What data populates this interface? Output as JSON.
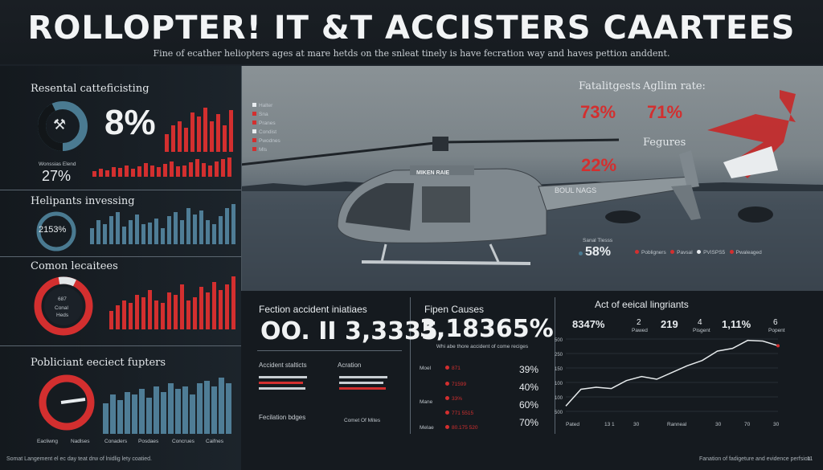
{
  "header": {
    "title": "ROLLOPTER! IT &T ACCISTERS CAARTEES",
    "subtitle": "Fine of ecather heliopters ages at mare hetds on the snleat tinely is have fecration way and haves pettion anddent."
  },
  "left": {
    "s1": {
      "title": "Resental catteficisting",
      "big": "8%",
      "label": "Wonssias Elend",
      "pct": "27%",
      "legend": [
        "Halter",
        "Sna",
        "Pranes",
        "Condist",
        "Pwodnes",
        "Mls"
      ]
    },
    "s2": {
      "title": "Helipants invessing",
      "gauge": "2153%"
    },
    "s3": {
      "title": "Comon lecaitees",
      "gauge_top": "687",
      "gauge_mid": "Conal",
      "gauge_bot": "Heds"
    },
    "s4": {
      "title": "Pobliciant eeciect fupters",
      "xlabels": [
        "Eacliwng",
        "Nadlses",
        "Conaders",
        "Posdaes",
        "Concrues",
        "Caifnes"
      ]
    }
  },
  "right": {
    "fatal_label": "Fatalitgests",
    "fatal_val": "73%",
    "agl_label": "Agllim rate:",
    "agl_val": "71%",
    "fig_label": "Fegures",
    "p22": "22%",
    "small_label": "Sanal Tlesss",
    "p58": "58%",
    "legend": [
      "Pobligners",
      "Pavsal",
      "PVISPS5",
      "Pwaleaged"
    ],
    "heli_door": "MIKEN RAIE",
    "heli_tail": "BOUL NAGS"
  },
  "bottom": {
    "c1_title": "Fection accident iniatiaes",
    "c1_big": "OO. II 3,3335",
    "c1_sub1": "Accident stalticts",
    "c1_sub2": "Acration",
    "c1_sub3": "Fecilation bdges",
    "c1_sub4": "Comet Of Mites",
    "c2_title": "Fipen Causes",
    "c2_big": "3,18365%",
    "c2_note": "Whi abe thore accident of come reciges",
    "c2_rows": [
      {
        "label": "Moel",
        "val": "871",
        "pct": "39%"
      },
      {
        "label": "",
        "val": "71599",
        "pct": "40%"
      },
      {
        "label": "Mane",
        "val": "33%",
        "pct": "60%"
      },
      {
        "label": "",
        "val": "771 5515",
        "pct": "70%"
      },
      {
        "label": "Melae",
        "val": "80.175 520",
        "pct": ""
      }
    ],
    "c3_title": "Act of eeical lingriants",
    "c3_stats": [
      "8347%",
      "2",
      "219",
      "4",
      "1,11%",
      "6"
    ],
    "c3_stats_small": [
      "Pawed",
      "Pisgent",
      "Popent"
    ],
    "c3_y": [
      "500",
      "250",
      "150",
      "100",
      "100",
      "500"
    ],
    "c3_x": [
      "Pated",
      "13 1",
      "30",
      "Ranneal",
      "30",
      "70",
      "30"
    ],
    "chart_values": [
      20,
      45,
      48,
      46,
      58,
      64,
      60,
      70,
      80,
      88,
      102,
      106,
      118,
      117,
      110
    ]
  },
  "footer": {
    "left": "Somat Langement el ec day teat drw of lnidlig lety coatied.",
    "right": "Fanation of fadigeture and evidence perfsion.",
    "page": "11"
  },
  "colors": {
    "accent_red": "#d32f2f",
    "bar_blue": "#4f7d96",
    "bg": "#1b2128"
  }
}
